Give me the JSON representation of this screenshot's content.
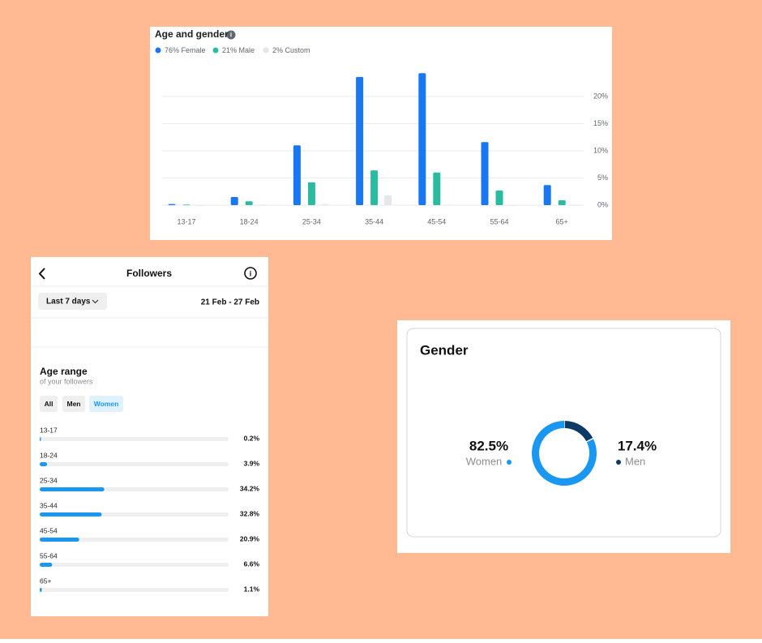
{
  "chart_data": [
    {
      "type": "bar",
      "title": "Age and gender",
      "categories": [
        "13-17",
        "18-24",
        "25-34",
        "35-44",
        "45-54",
        "55-64",
        "65+"
      ],
      "series": [
        {
          "name": "76% Female",
          "color": "#1877f2",
          "values": [
            0.2,
            1.5,
            11.0,
            23.6,
            24.3,
            11.6,
            3.7
          ]
        },
        {
          "name": "21% Male",
          "color": "#2bbba0",
          "values": [
            0.1,
            0.7,
            4.2,
            6.4,
            6.0,
            2.7,
            0.9
          ]
        },
        {
          "name": "2% Custom",
          "color": "#e4e6eb",
          "values": [
            0,
            0,
            0.2,
            1.8,
            0.1,
            0,
            0
          ]
        }
      ],
      "ylim": [
        0,
        25
      ],
      "yticks": [
        {
          "value": 0,
          "label": "0%"
        },
        {
          "value": 5,
          "label": "5%"
        },
        {
          "value": 10,
          "label": "10%"
        },
        {
          "value": 15,
          "label": "15%"
        },
        {
          "value": 20,
          "label": "20%"
        }
      ],
      "grid": true
    },
    {
      "type": "bar",
      "orientation": "horizontal",
      "header": "Followers",
      "period": "Last 7 days",
      "date_range": "21 Feb - 27 Feb",
      "title": "Age range",
      "subtitle": "of your followers",
      "filters": [
        "All",
        "Men",
        "Women"
      ],
      "categories": [
        "13-17",
        "18-24",
        "25-34",
        "35-44",
        "45-54",
        "55-64",
        "65+"
      ],
      "values": [
        0.2,
        3.9,
        34.2,
        32.8,
        20.9,
        6.6,
        1.1
      ],
      "value_labels": [
        "0.2%",
        "3.9%",
        "34.2%",
        "32.8%",
        "20.9%",
        "6.6%",
        "1.1%"
      ],
      "color": "#1a97f0",
      "xlim": [
        0,
        100
      ]
    },
    {
      "type": "pie",
      "donut": true,
      "title": "Gender",
      "categories": [
        "Women",
        "Men"
      ],
      "values": [
        82.5,
        17.4
      ],
      "value_labels": [
        "82.5%",
        "17.4%"
      ],
      "colors": [
        "#1a97f0",
        "#0c3966"
      ]
    }
  ]
}
